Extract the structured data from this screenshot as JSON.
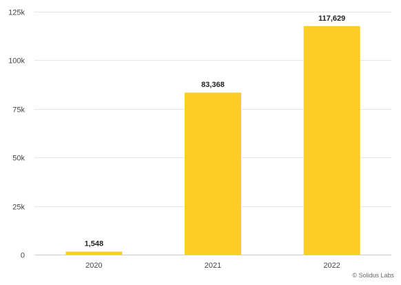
{
  "chart_data": {
    "type": "bar",
    "categories": [
      "2020",
      "2021",
      "2022"
    ],
    "values": [
      1548,
      83368,
      117629
    ],
    "data_labels": [
      "1,548",
      "83,368",
      "117,629"
    ],
    "title": "",
    "xlabel": "",
    "ylabel": "",
    "ylim": [
      0,
      125000
    ],
    "yticks": [
      0,
      25000,
      50000,
      75000,
      100000,
      125000
    ],
    "ytick_labels": [
      "0",
      "25k",
      "50k",
      "75k",
      "100k",
      "125k"
    ],
    "grid": true,
    "legend": "none"
  },
  "colors": {
    "bar": "#fccd25",
    "grid": "#e6e6e6",
    "axis": "#cccccc"
  },
  "credit": "© Solidus Labs"
}
